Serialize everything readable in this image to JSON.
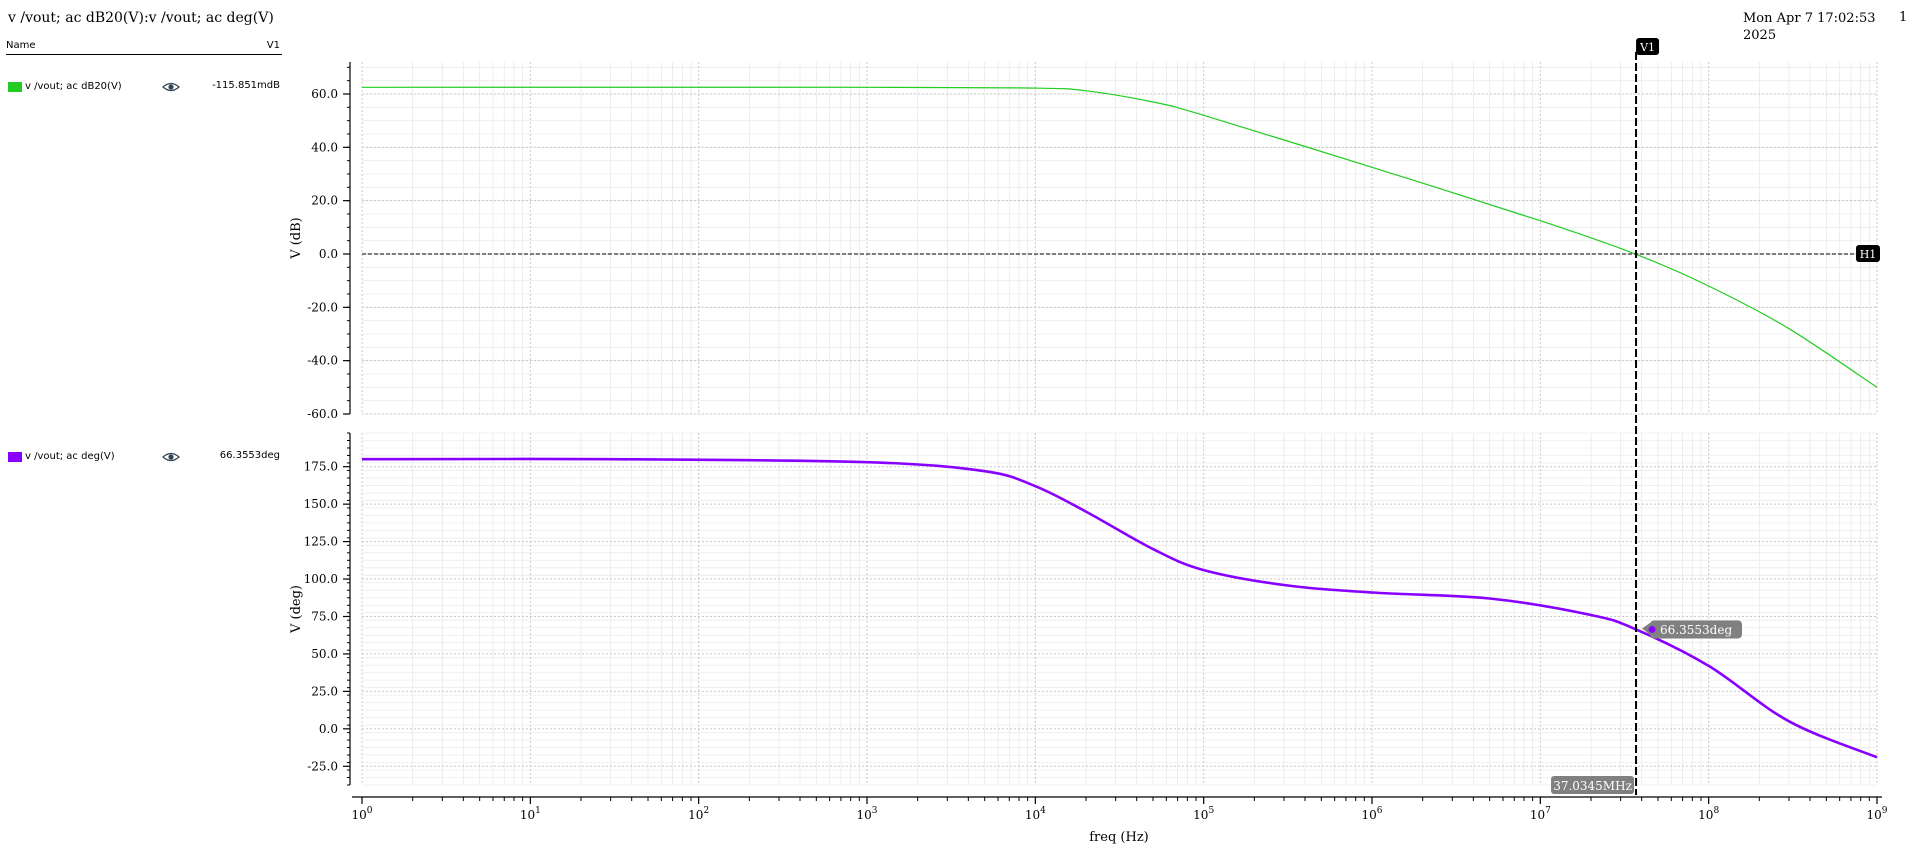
{
  "header": {
    "title": "v /vout; ac dB20(V):v /vout; ac deg(V)",
    "date_line1": "Mon Apr 7 17:02:53",
    "date_line2": "2025",
    "page": "1"
  },
  "legend": {
    "name_header": "Name",
    "cursor_header": "V1",
    "items": [
      {
        "label": "v /vout; ac dB20(V)",
        "value": "-115.851mdB",
        "color": "#22cc22",
        "icon": "eye-icon"
      },
      {
        "label": "v /vout; ac deg(V)",
        "value": "66.3553deg",
        "color": "#8800ff",
        "icon": "eye-icon"
      }
    ]
  },
  "chart_data": [
    {
      "type": "line",
      "title": "",
      "xlabel": "freq (Hz)",
      "ylabel": "V (dB)",
      "xscale": "log",
      "xlim": [
        1,
        1000000000
      ],
      "ylim": [
        -60,
        72
      ],
      "yticks": [
        -60,
        -40,
        -20,
        0,
        20,
        40,
        60
      ],
      "ytick_labels": [
        "-60.0",
        "-40.0",
        "-20.0",
        "0.0",
        "20.0",
        "40.0",
        "60.0"
      ],
      "grid": true,
      "series": [
        {
          "name": "v /vout; ac dB20(V)",
          "color": "#22cc22",
          "x": [
            1,
            1000,
            10000,
            20000,
            50000,
            100000,
            1000000,
            10000000,
            37034500,
            100000000,
            300000000,
            1000000000
          ],
          "y": [
            62.5,
            62.5,
            62.2,
            61.2,
            57,
            52,
            32.5,
            12.5,
            -0.116,
            -12,
            -28,
            -50
          ]
        }
      ],
      "annotations": {
        "horizontal_marker": {
          "label": "H1",
          "y": 0
        },
        "vertical_marker": {
          "label": "V1",
          "x": 37034500
        }
      }
    },
    {
      "type": "line",
      "title": "",
      "xlabel": "freq (Hz)",
      "ylabel": "V (deg)",
      "xscale": "log",
      "xlim": [
        1,
        1000000000
      ],
      "ylim": [
        -37.5,
        197.5
      ],
      "yticks": [
        -25,
        0,
        25,
        50,
        75,
        100,
        125,
        150,
        175
      ],
      "ytick_labels": [
        "-25.0",
        "0.0",
        "25.0",
        "50.0",
        "75.0",
        "100.0",
        "125.0",
        "150.0",
        "175.0"
      ],
      "grid": true,
      "series": [
        {
          "name": "v /vout; ac deg(V)",
          "color": "#8800ff",
          "x": [
            1,
            30,
            1000,
            5000,
            10000,
            20000,
            50000,
            100000,
            300000,
            1000000,
            5000000,
            20000000,
            37034500,
            100000000,
            300000000,
            1000000000
          ],
          "y": [
            180,
            180,
            178,
            172,
            162,
            145,
            120,
            106,
            96,
            91,
            87,
            76,
            66.3553,
            42,
            5,
            -19
          ]
        }
      ],
      "annotations": {
        "point_label": {
          "text": "66.3553deg",
          "x": 37034500,
          "y": 66.3553
        },
        "x_marker_label": {
          "text": "37.0345MHz"
        }
      }
    }
  ]
}
